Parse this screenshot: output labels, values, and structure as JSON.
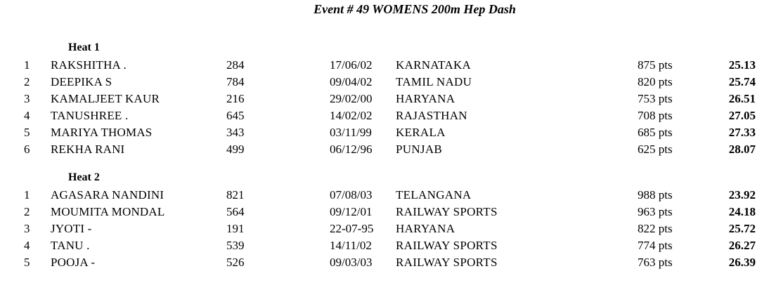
{
  "event_title": "Event # 49 WOMENS 200m Hep Dash",
  "heats": [
    {
      "title": "Heat 1",
      "rows": [
        {
          "place": "1",
          "name": "RAKSHITHA .",
          "bib": "284",
          "dob": "17/06/02",
          "team": "KARNATAKA",
          "points": "875 pts",
          "time": "25.13"
        },
        {
          "place": "2",
          "name": "DEEPIKA S",
          "bib": "784",
          "dob": "09/04/02",
          "team": "TAMIL NADU",
          "points": "820 pts",
          "time": "25.74"
        },
        {
          "place": "3",
          "name": "KAMALJEET KAUR",
          "bib": "216",
          "dob": "29/02/00",
          "team": "HARYANA",
          "points": "753 pts",
          "time": "26.51"
        },
        {
          "place": "4",
          "name": "TANUSHREE .",
          "bib": "645",
          "dob": "14/02/02",
          "team": "RAJASTHAN",
          "points": "708 pts",
          "time": "27.05"
        },
        {
          "place": "5",
          "name": "MARIYA THOMAS",
          "bib": "343",
          "dob": "03/11/99",
          "team": "KERALA",
          "points": "685 pts",
          "time": "27.33"
        },
        {
          "place": "6",
          "name": "REKHA RANI",
          "bib": "499",
          "dob": "06/12/96",
          "team": "PUNJAB",
          "points": "625 pts",
          "time": "28.07"
        }
      ]
    },
    {
      "title": "Heat 2",
      "rows": [
        {
          "place": "1",
          "name": "AGASARA NANDINI",
          "bib": "821",
          "dob": "07/08/03",
          "team": "TELANGANA",
          "points": "988 pts",
          "time": "23.92"
        },
        {
          "place": "2",
          "name": "MOUMITA MONDAL",
          "bib": "564",
          "dob": "09/12/01",
          "team": "RAILWAY SPORTS",
          "points": "963 pts",
          "time": "24.18"
        },
        {
          "place": "3",
          "name": "JYOTI -",
          "bib": "191",
          "dob": "22-07-95",
          "team": "HARYANA",
          "points": "822 pts",
          "time": "25.72"
        },
        {
          "place": "4",
          "name": "TANU .",
          "bib": "539",
          "dob": "14/11/02",
          "team": "RAILWAY SPORTS",
          "points": "774 pts",
          "time": "26.27"
        },
        {
          "place": "5",
          "name": "POOJA -",
          "bib": "526",
          "dob": "09/03/03",
          "team": "RAILWAY SPORTS",
          "points": "763 pts",
          "time": "26.39"
        }
      ]
    }
  ]
}
